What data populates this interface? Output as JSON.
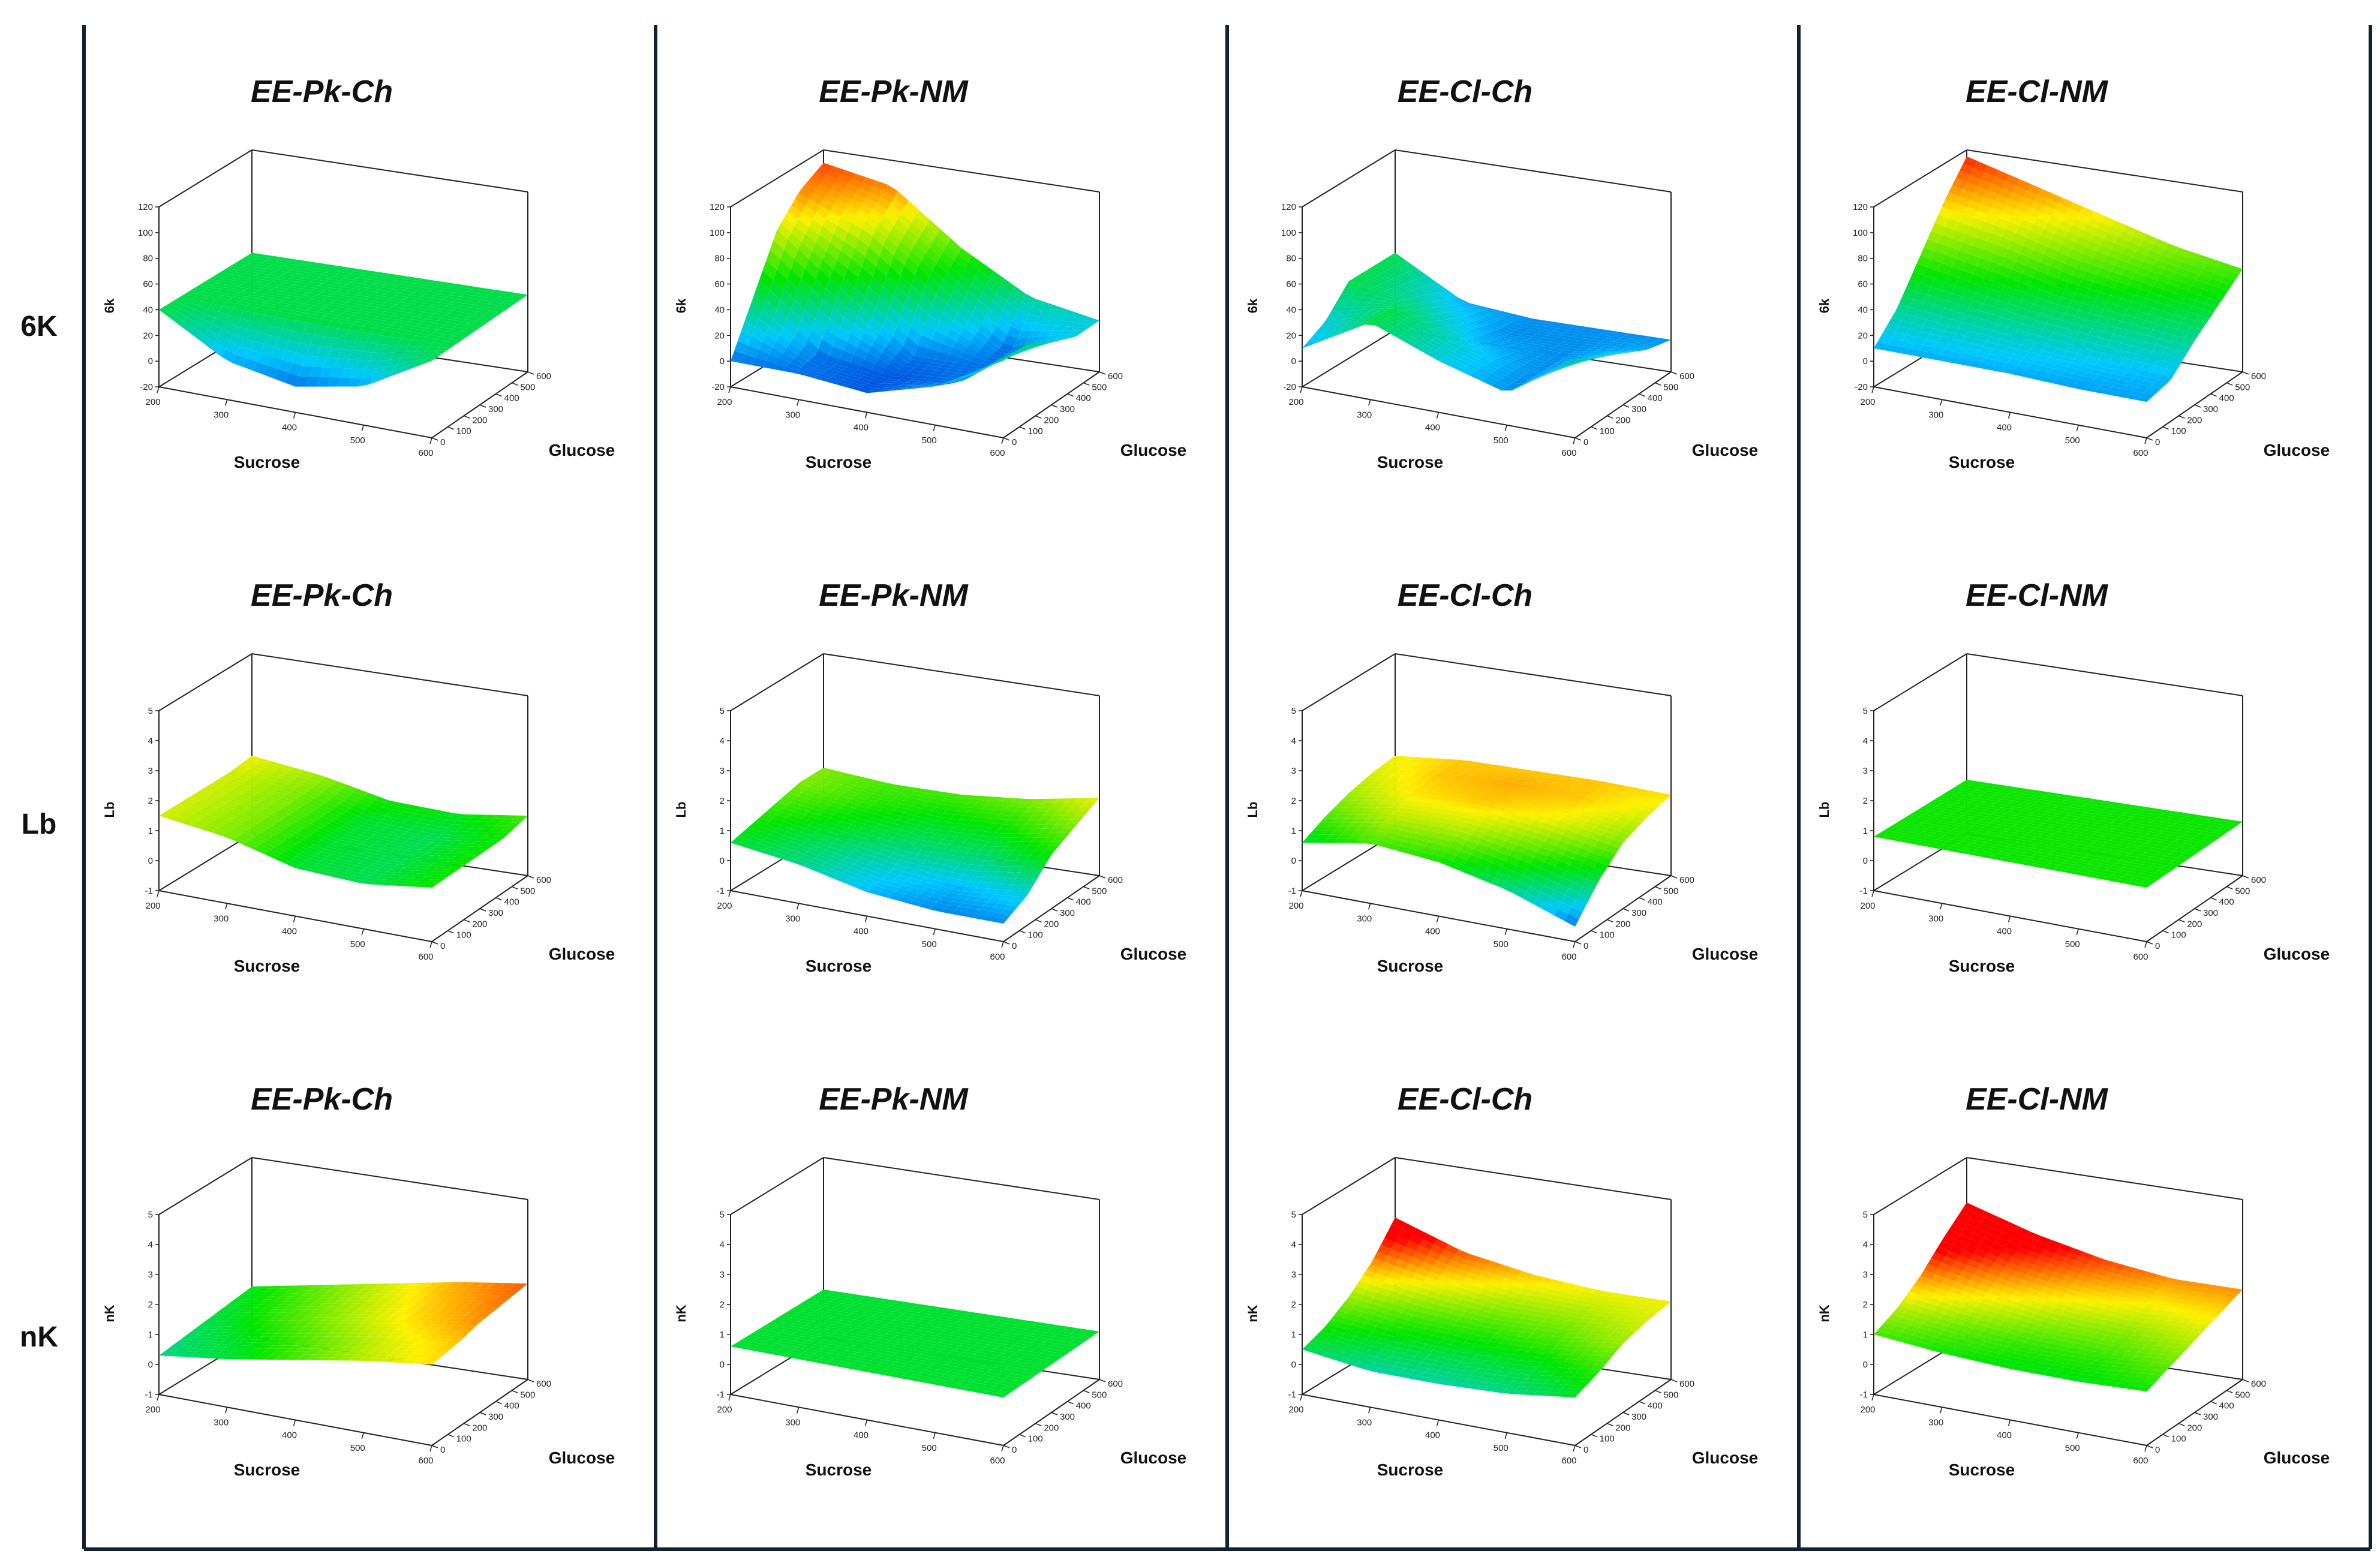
{
  "figure": {
    "columns": [
      "EE-Pk-Ch",
      "EE-Pk-NM",
      "EE-Cl-Ch",
      "EE-Cl-NM"
    ],
    "rows": [
      {
        "label": "6K",
        "zlabel": "6k",
        "zticks": [
          "-20",
          "0",
          "20",
          "40",
          "60",
          "80",
          "100",
          "120"
        ],
        "zlim": [
          -20,
          120
        ]
      },
      {
        "label": "Lb",
        "zlabel": "Lb",
        "zticks": [
          "-1",
          "0",
          "1",
          "2",
          "3",
          "4",
          "5"
        ],
        "zlim": [
          -1,
          5
        ]
      },
      {
        "label": "nK",
        "zlabel": "nK",
        "zticks": [
          "-1",
          "0",
          "1",
          "2",
          "3",
          "4",
          "5"
        ],
        "zlim": [
          -1,
          5
        ]
      }
    ],
    "xlabel": "Sucrose",
    "ylabel": "Glucose",
    "xticks": [
      "200",
      "300",
      "400",
      "500",
      "600"
    ],
    "yticks": [
      "0",
      "100",
      "200",
      "300",
      "400",
      "500",
      "600"
    ],
    "colors": {
      "frame": "#0f2233",
      "colormap_low": "#0000c8",
      "colormap_high": "#ff0000"
    }
  },
  "chart_data": {
    "type": "surface",
    "grid": {
      "x": [
        200,
        300,
        400,
        500,
        600
      ],
      "y": [
        0,
        150,
        300,
        450,
        600
      ]
    },
    "note": "z[i][j] = estimated response at x[j] (Sucrose), y[i] (Glucose)",
    "surfaces": [
      {
        "row": "6K",
        "panel": "EE-Pk-Ch",
        "z": [
          [
            40,
            10,
            0,
            10,
            40
          ],
          [
            40,
            40,
            40,
            40,
            40
          ],
          [
            40,
            40,
            40,
            40,
            40
          ],
          [
            40,
            40,
            40,
            40,
            40
          ],
          [
            40,
            40,
            40,
            40,
            40
          ]
        ]
      },
      {
        "row": "6K",
        "panel": "EE-Pk-NM",
        "z": [
          [
            0,
            0,
            -5,
            10,
            40
          ],
          [
            40,
            0,
            -5,
            0,
            40
          ],
          [
            80,
            40,
            0,
            0,
            30
          ],
          [
            100,
            80,
            40,
            0,
            20
          ],
          [
            110,
            100,
            60,
            30,
            20
          ]
        ]
      },
      {
        "row": "6K",
        "panel": "EE-Cl-Ch",
        "z": [
          [
            10,
            40,
            20,
            5,
            40
          ],
          [
            20,
            40,
            20,
            5,
            30
          ],
          [
            40,
            30,
            10,
            5,
            20
          ],
          [
            40,
            20,
            5,
            5,
            10
          ],
          [
            40,
            10,
            5,
            5,
            5
          ]
        ]
      },
      {
        "row": "6K",
        "panel": "EE-Cl-NM",
        "z": [
          [
            10,
            10,
            10,
            8,
            8
          ],
          [
            30,
            25,
            20,
            15,
            12
          ],
          [
            60,
            50,
            40,
            35,
            30
          ],
          [
            90,
            80,
            65,
            55,
            45
          ],
          [
            115,
            100,
            85,
            70,
            60
          ]
        ]
      },
      {
        "row": "Lb",
        "panel": "EE-Pk-Ch",
        "z": [
          [
            1.5,
            1.2,
            0.6,
            0.5,
            0.8
          ],
          [
            1.5,
            1.2,
            0.6,
            0.5,
            0.8
          ],
          [
            1.5,
            1.2,
            0.6,
            0.5,
            0.8
          ],
          [
            1.5,
            1.2,
            0.6,
            0.5,
            0.8
          ],
          [
            1.6,
            1.3,
            0.8,
            0.7,
            1.0
          ]
        ]
      },
      {
        "row": "Lb",
        "panel": "EE-Pk-NM",
        "z": [
          [
            0.6,
            0.3,
            -0.2,
            -0.4,
            -0.4
          ],
          [
            0.8,
            0.4,
            0.0,
            -0.2,
            0.0
          ],
          [
            1.0,
            0.7,
            0.4,
            0.4,
            0.8
          ],
          [
            1.2,
            0.9,
            0.7,
            0.8,
            1.2
          ],
          [
            1.2,
            1.0,
            1.0,
            1.2,
            1.6
          ]
        ]
      },
      {
        "row": "Lb",
        "panel": "EE-Cl-Ch",
        "z": [
          [
            0.6,
            1.0,
            0.8,
            0.3,
            -0.5
          ],
          [
            1.0,
            1.4,
            1.4,
            1.0,
            0.5
          ],
          [
            1.3,
            1.7,
            1.8,
            1.6,
            1.2
          ],
          [
            1.5,
            1.8,
            1.9,
            1.8,
            1.5
          ],
          [
            1.6,
            1.8,
            1.8,
            1.8,
            1.7
          ]
        ]
      },
      {
        "row": "Lb",
        "panel": "EE-Cl-NM",
        "z": [
          [
            0.8,
            0.8,
            0.8,
            0.8,
            0.8
          ],
          [
            0.8,
            0.8,
            0.8,
            0.8,
            0.8
          ],
          [
            0.8,
            0.8,
            0.8,
            0.8,
            0.8
          ],
          [
            0.8,
            0.8,
            0.8,
            0.8,
            0.8
          ],
          [
            0.8,
            0.8,
            0.8,
            0.8,
            0.8
          ]
        ]
      },
      {
        "row": "nK",
        "panel": "EE-Pk-Ch",
        "z": [
          [
            0.3,
            0.6,
            1.0,
            1.4,
            1.7
          ],
          [
            0.4,
            0.7,
            1.1,
            1.5,
            1.8
          ],
          [
            0.5,
            0.9,
            1.3,
            1.7,
            2.0
          ],
          [
            0.6,
            1.0,
            1.4,
            1.8,
            2.1
          ],
          [
            0.7,
            1.1,
            1.5,
            1.9,
            2.2
          ]
        ]
      },
      {
        "row": "nK",
        "panel": "EE-Pk-NM",
        "z": [
          [
            0.6,
            0.6,
            0.6,
            0.6,
            0.6
          ],
          [
            0.6,
            0.6,
            0.6,
            0.6,
            0.6
          ],
          [
            0.6,
            0.6,
            0.6,
            0.6,
            0.6
          ],
          [
            0.6,
            0.6,
            0.6,
            0.6,
            0.6
          ],
          [
            0.6,
            0.6,
            0.6,
            0.6,
            0.6
          ]
        ]
      },
      {
        "row": "nK",
        "panel": "EE-Cl-Ch",
        "z": [
          [
            0.5,
            0.2,
            0.2,
            0.3,
            0.6
          ],
          [
            0.8,
            0.6,
            0.5,
            0.6,
            0.9
          ],
          [
            1.3,
            1.0,
            0.9,
            1.0,
            1.3
          ],
          [
            2.0,
            1.6,
            1.3,
            1.3,
            1.5
          ],
          [
            3.0,
            2.2,
            1.8,
            1.6,
            1.6
          ]
        ]
      },
      {
        "row": "nK",
        "panel": "EE-Cl-NM",
        "z": [
          [
            1.0,
            0.8,
            0.7,
            0.7,
            0.8
          ],
          [
            1.4,
            1.1,
            0.9,
            0.9,
            1.1
          ],
          [
            2.0,
            1.6,
            1.3,
            1.2,
            1.4
          ],
          [
            2.8,
            2.2,
            1.8,
            1.6,
            1.7
          ],
          [
            3.5,
            2.8,
            2.3,
            2.0,
            2.0
          ]
        ]
      }
    ]
  }
}
